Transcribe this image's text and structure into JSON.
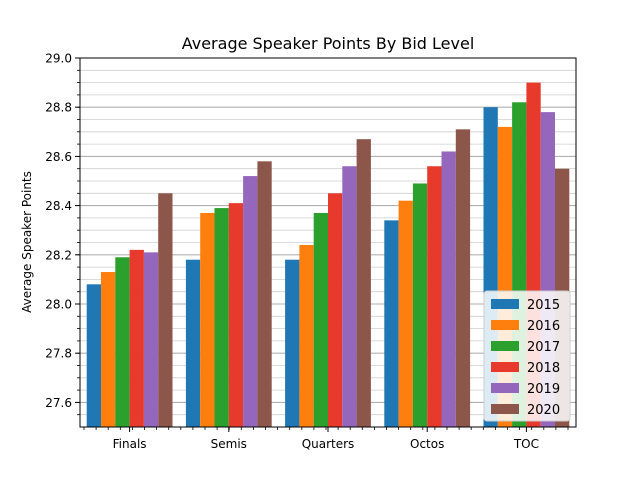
{
  "chart_data": {
    "type": "bar",
    "title": "Average Speaker Points By Bid Level",
    "xlabel": "",
    "ylabel": "Average Speaker Points",
    "categories": [
      "Finals",
      "Semis",
      "Quarters",
      "Octos",
      "TOC"
    ],
    "ylim": [
      27.5,
      29.0
    ],
    "yticks": [
      "27.6",
      "27.8",
      "28.0",
      "28.2",
      "28.4",
      "28.6",
      "28.8",
      "29.0"
    ],
    "grid": true,
    "legend_position": "bottom-right",
    "series": [
      {
        "name": "2015",
        "color": "#1f77b4",
        "values": [
          28.08,
          28.18,
          28.18,
          28.34,
          28.8
        ]
      },
      {
        "name": "2016",
        "color": "#ff7f0e",
        "values": [
          28.13,
          28.37,
          28.24,
          28.42,
          28.72
        ]
      },
      {
        "name": "2017",
        "color": "#2ca02c",
        "values": [
          28.19,
          28.39,
          28.37,
          28.49,
          28.82
        ]
      },
      {
        "name": "2018",
        "color": "#e8392d",
        "values": [
          28.22,
          28.41,
          28.45,
          28.56,
          28.9
        ]
      },
      {
        "name": "2019",
        "color": "#9467bd",
        "values": [
          28.21,
          28.52,
          28.56,
          28.62,
          28.78
        ]
      },
      {
        "name": "2020",
        "color": "#8c564b",
        "values": [
          28.45,
          28.58,
          28.67,
          28.71,
          28.55
        ]
      }
    ]
  }
}
